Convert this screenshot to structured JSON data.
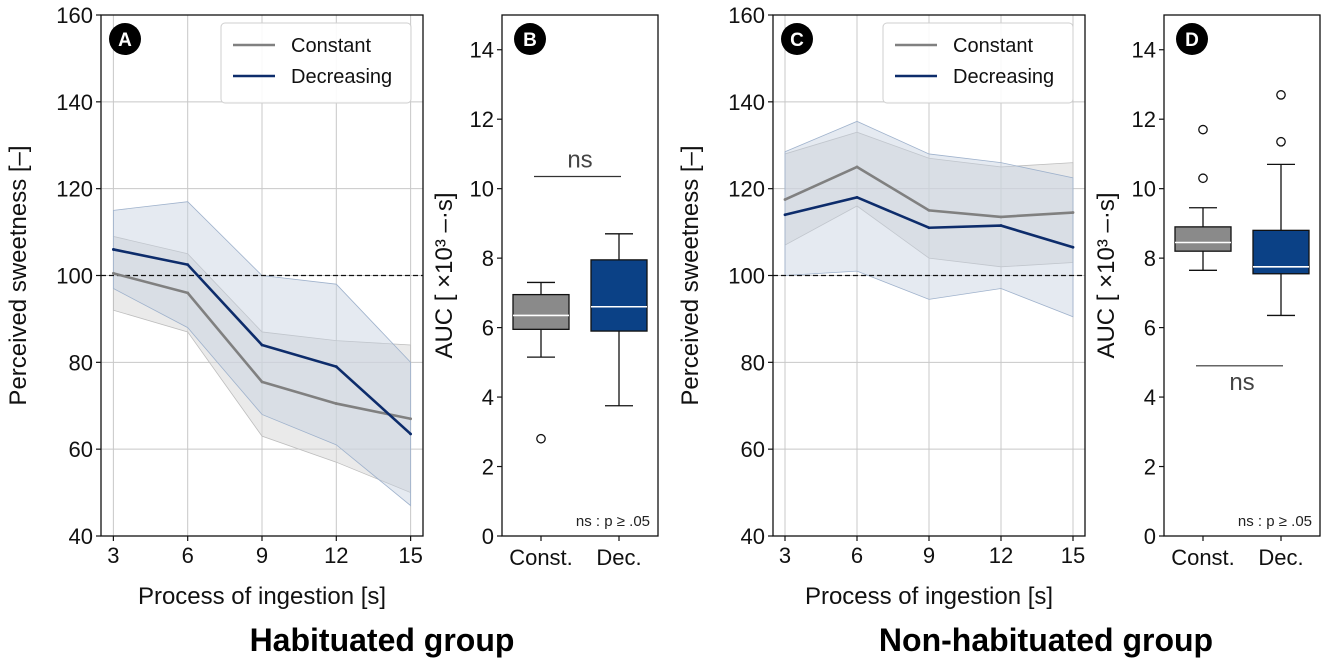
{
  "colors": {
    "constant": "#808080",
    "decreasing": "#0d2c6b",
    "box_const": "#8a8a8a",
    "box_dec": "#0b4186",
    "constant_band": "#d9d9d9",
    "decreasing_band": "#c6d1e0"
  },
  "chart_data": [
    {
      "panel": "A",
      "type": "line",
      "group": "Habituated group",
      "xlabel": "Process of ingestion [s]",
      "ylabel": "Perceived sweetness [–]",
      "x": [
        3,
        6,
        9,
        12,
        15
      ],
      "xticks": [
        "3",
        "6",
        "9",
        "12",
        "15"
      ],
      "ylim": [
        40,
        160
      ],
      "yticks": [
        40,
        60,
        80,
        100,
        120,
        140,
        160
      ],
      "reference_line": 100,
      "grid": true,
      "legend": "top-right",
      "series": [
        {
          "name": "Constant",
          "values": [
            100.5,
            96,
            75.5,
            70.5,
            67
          ],
          "lower": [
            92,
            87,
            63,
            57,
            50
          ],
          "upper": [
            109,
            105,
            87,
            85,
            84
          ]
        },
        {
          "name": "Decreasing",
          "values": [
            106,
            102.5,
            84,
            79,
            63.5
          ],
          "lower": [
            97,
            88,
            68,
            61,
            47
          ],
          "upper": [
            115,
            117,
            100,
            98,
            80
          ]
        }
      ]
    },
    {
      "panel": "B",
      "type": "box",
      "group": "Habituated group",
      "ylabel": "AUC [ ×10³ –·s]",
      "ylim": [
        0,
        15
      ],
      "yticks": [
        0,
        2,
        4,
        6,
        8,
        10,
        12,
        14
      ],
      "categories": [
        "Const.",
        "Dec."
      ],
      "boxes": [
        {
          "name": "Const.",
          "whislo": 5.15,
          "q1": 5.95,
          "med": 6.35,
          "q3": 6.95,
          "whishi": 7.3,
          "fliers": [
            2.8
          ]
        },
        {
          "name": "Dec.",
          "whislo": 3.75,
          "q1": 5.9,
          "med": 6.6,
          "q3": 7.95,
          "whishi": 8.7,
          "fliers": []
        }
      ],
      "significance": {
        "label": "ns",
        "y": 10.35,
        "position": "above"
      },
      "note": "ns : p ≥ .05"
    },
    {
      "panel": "C",
      "type": "line",
      "group": "Non-habituated group",
      "xlabel": "Process of ingestion [s]",
      "ylabel": "Perceived sweetness [–]",
      "x": [
        3,
        6,
        9,
        12,
        15
      ],
      "xticks": [
        "3",
        "6",
        "9",
        "12",
        "15"
      ],
      "ylim": [
        40,
        160
      ],
      "yticks": [
        40,
        60,
        80,
        100,
        120,
        140,
        160
      ],
      "reference_line": 100,
      "grid": true,
      "legend": "top-right",
      "series": [
        {
          "name": "Constant",
          "values": [
            117.5,
            125,
            115,
            113.5,
            114.5
          ],
          "lower": [
            107,
            116,
            104,
            102,
            103
          ],
          "upper": [
            128,
            133,
            127,
            125,
            126
          ]
        },
        {
          "name": "Decreasing",
          "values": [
            114,
            118,
            111,
            111.5,
            106.5
          ],
          "lower": [
            100,
            101,
            94.5,
            97,
            90.5
          ],
          "upper": [
            128.5,
            135.5,
            128,
            126,
            122.5
          ]
        }
      ]
    },
    {
      "panel": "D",
      "type": "box",
      "group": "Non-habituated group",
      "ylabel": "AUC [ ×10³ –·s]",
      "ylim": [
        0,
        15
      ],
      "yticks": [
        0,
        2,
        4,
        6,
        8,
        10,
        12,
        14
      ],
      "categories": [
        "Const.",
        "Dec."
      ],
      "boxes": [
        {
          "name": "Const.",
          "whislo": 7.65,
          "q1": 8.2,
          "med": 8.45,
          "q3": 8.9,
          "whishi": 9.45,
          "fliers": [
            10.3,
            11.7
          ]
        },
        {
          "name": "Dec.",
          "whislo": 6.35,
          "q1": 7.55,
          "med": 7.75,
          "q3": 8.8,
          "whishi": 10.7,
          "fliers": [
            11.35,
            12.7
          ]
        }
      ],
      "significance": {
        "label": "ns",
        "y": 4.9,
        "position": "below"
      },
      "note": "ns : p ≥ .05"
    }
  ],
  "groups": [
    {
      "title": "Habituated group"
    },
    {
      "title": "Non-habituated group"
    }
  ]
}
